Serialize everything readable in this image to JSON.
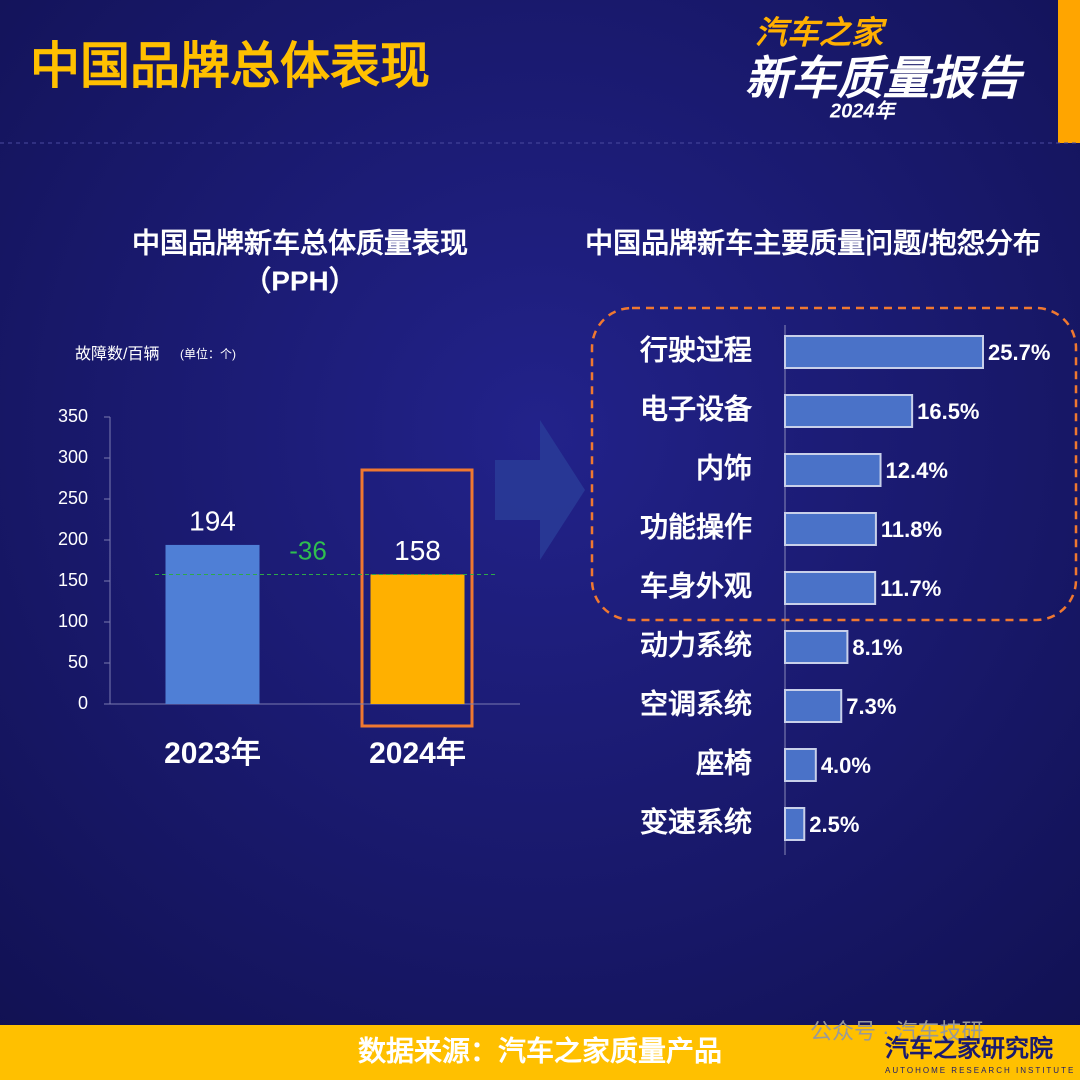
{
  "header": {
    "title": "中国品牌总体表现",
    "logo_line1": "汽车之家",
    "logo_line2": "新车质量报告",
    "logo_year": "2024年"
  },
  "chart_data": [
    {
      "type": "bar",
      "title": "中国品牌新车总体质量表现",
      "subtitle": "（PPH）",
      "y_axis_label": "故障数/百辆",
      "y_axis_unit": "(单位：个)",
      "categories": [
        "2023年",
        "2024年"
      ],
      "values": [
        194,
        158
      ],
      "colors": [
        "#4f7fd6",
        "#ffb000"
      ],
      "annotation": -36,
      "ylim": [
        0,
        350
      ],
      "yticks": [
        0,
        50,
        100,
        150,
        200,
        250,
        300,
        350
      ]
    },
    {
      "type": "hbar",
      "title": "中国品牌新车主要质量问题/抱怨分布",
      "categories": [
        "行驶过程",
        "电子设备",
        "内饰",
        "功能操作",
        "车身外观",
        "动力系统",
        "空调系统",
        "座椅",
        "变速系统"
      ],
      "values": [
        25.7,
        16.5,
        12.4,
        11.8,
        11.7,
        8.1,
        7.3,
        4.0,
        2.5
      ],
      "value_labels": [
        "25.7%",
        "16.5%",
        "12.4%",
        "11.8%",
        "11.7%",
        "8.1%",
        "7.3%",
        "4.0%",
        "2.5%"
      ],
      "color": "#4a72c8"
    }
  ],
  "footer": {
    "source": "数据来源：汽车之家质量产品",
    "watermark": "公众号 · 汽车技研",
    "institute": "汽车之家研究院",
    "institute_en": "AUTOHOME RESEARCH INSTITUTE"
  }
}
